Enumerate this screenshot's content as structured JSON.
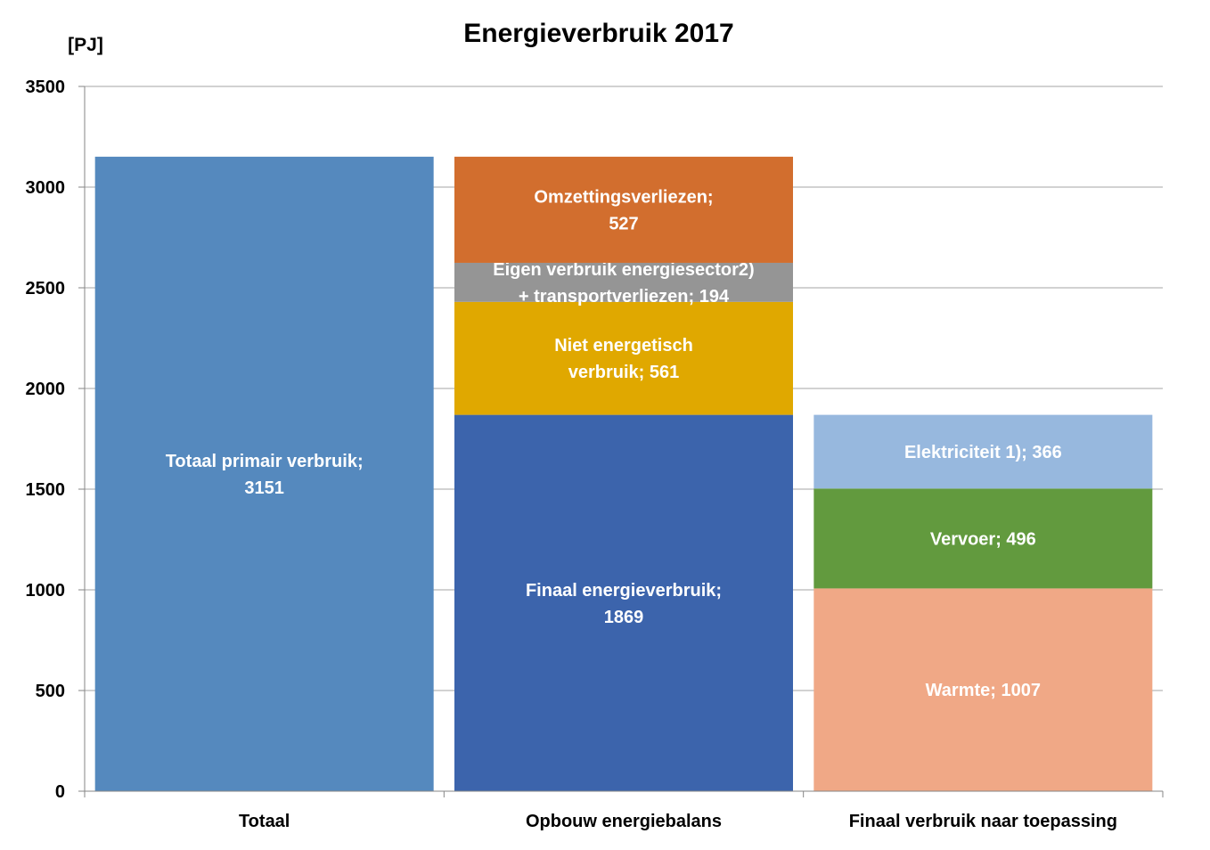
{
  "chart_data": {
    "type": "bar",
    "stacked": true,
    "title": "Energieverbruik 2017",
    "ylabel": "[PJ]",
    "xlabel": "",
    "ylim": [
      0,
      3500
    ],
    "yticks": [
      0,
      500,
      1000,
      1500,
      2000,
      2500,
      3000,
      3500
    ],
    "grid": true,
    "legend": "none",
    "categories": [
      "Totaal",
      "Opbouw energiebalans",
      "Finaal verbruik naar toepassing"
    ],
    "bars": [
      {
        "category": "Totaal",
        "segments": [
          {
            "label_lines": [
              "Totaal primair verbruik;",
              "3151"
            ],
            "value": 3151,
            "color": "#5589BE"
          }
        ]
      },
      {
        "category": "Opbouw energiebalans",
        "segments": [
          {
            "label_lines": [
              "Finaal  energieverbruik;",
              "1869"
            ],
            "value": 1869,
            "color": "#3C64AC"
          },
          {
            "label_lines": [
              "Niet energetisch",
              "verbruik; 561"
            ],
            "value": 561,
            "color": "#E0A800"
          },
          {
            "label_lines": [
              "Eigen verbruik energiesector2)",
              "+   transportverliezen; 194"
            ],
            "value": 194,
            "color": "#959595"
          },
          {
            "label_lines": [
              "Omzettingsverliezen;",
              "527"
            ],
            "value": 527,
            "color": "#D26E2E"
          }
        ]
      },
      {
        "category": "Finaal verbruik naar toepassing",
        "segments": [
          {
            "label_lines": [
              "Warmte; 1007"
            ],
            "value": 1007,
            "color": "#F0A886"
          },
          {
            "label_lines": [
              "Vervoer; 496"
            ],
            "value": 496,
            "color": "#629A3E"
          },
          {
            "label_lines": [
              "Elektriciteit 1); 366"
            ],
            "value": 366,
            "color": "#97B8DE"
          }
        ]
      }
    ],
    "colors": {
      "grid": "#A6A6A6",
      "axis": "#868686"
    }
  }
}
